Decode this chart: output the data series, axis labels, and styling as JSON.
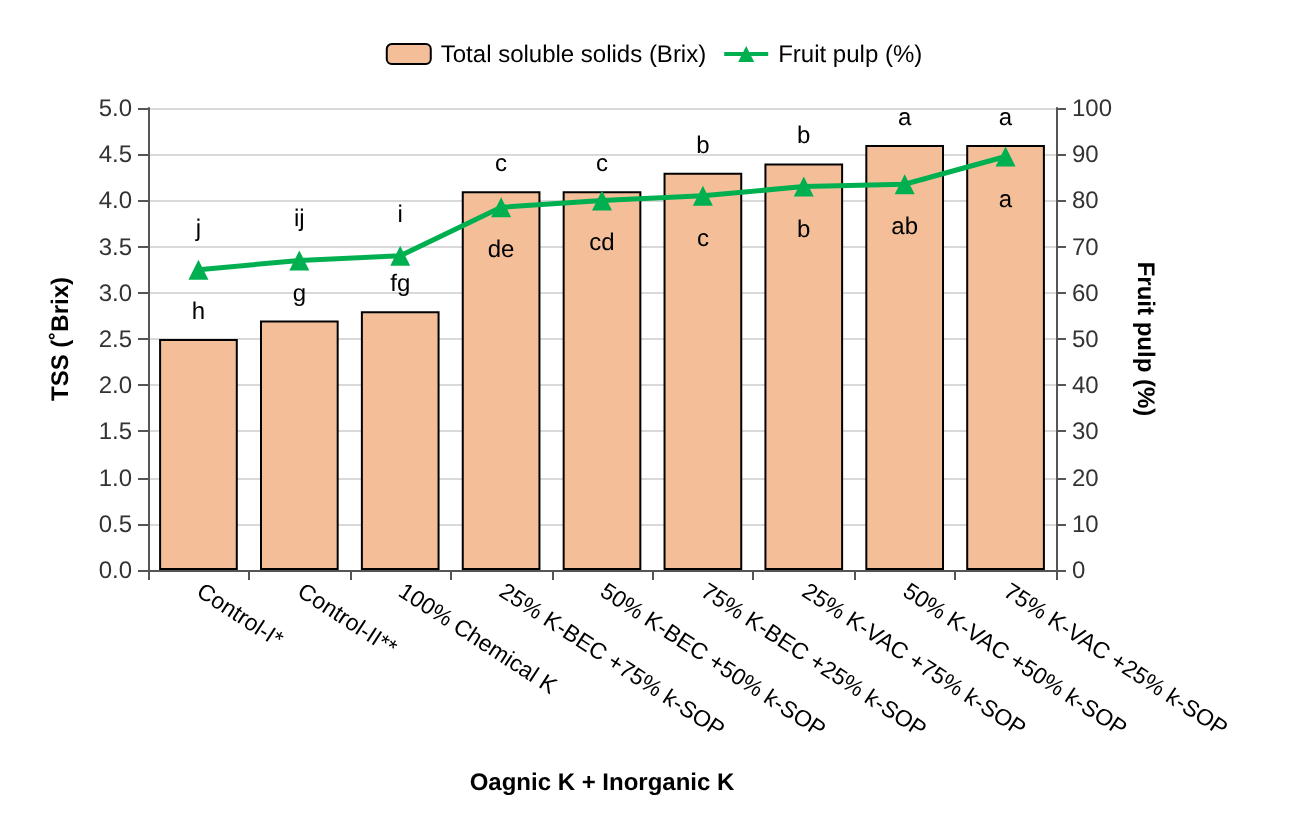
{
  "chart_data": {
    "type": "bar",
    "xlabel": "Oagnic K + Inorganic K",
    "ylabel": "TSS (˚Brix)",
    "y2label": "Fruit pulp (%)",
    "categories": [
      "Control-I*",
      "Control-II**",
      "100% Chemical K",
      "25% K-BEC +75% k-SOP",
      "50% K-BEC +50% k-SOP",
      "75% K-BEC +25% k-SOP",
      "25% K-VAC +75% k-SOP",
      "50% K-VAC +50% k-SOP",
      "75% K-VAC +25% k-SOP"
    ],
    "series": [
      {
        "name": "Total soluble solids (Brix)",
        "color": "#f4bf98",
        "values": [
          2.5,
          2.7,
          2.8,
          4.1,
          4.1,
          4.3,
          4.4,
          4.6,
          4.6
        ],
        "value_labels": [
          "h",
          "g",
          "fg",
          "c",
          "c",
          "b",
          "b",
          "a",
          "a"
        ]
      },
      {
        "name": "Fruit pulp (%)",
        "type": "line",
        "axis": "y2",
        "color": "#00b050",
        "marker": "triangle",
        "values": [
          65,
          67,
          68,
          78.5,
          80,
          81,
          83,
          83.5,
          89.5
        ],
        "value_labels": [
          "j",
          "ij",
          "i",
          "de",
          "cd",
          "c",
          "b",
          "ab",
          "a"
        ]
      }
    ],
    "ylim": [
      0,
      5
    ],
    "yticks": [
      {
        "value": 0,
        "label": "0.0"
      },
      0.5,
      {
        "value": 1,
        "label": "1.0"
      },
      1.5,
      {
        "value": 2,
        "label": "2.0"
      },
      2.5,
      {
        "value": 3,
        "label": "3.0"
      },
      3.5,
      {
        "value": 4,
        "label": "4.0"
      },
      4.5,
      {
        "value": 5,
        "label": "5.0"
      }
    ],
    "y2lim": [
      0,
      100
    ],
    "y2ticks": [
      0,
      10,
      20,
      30,
      40,
      50,
      60,
      70,
      80,
      90,
      100
    ],
    "grid": "y",
    "legend": "top"
  }
}
